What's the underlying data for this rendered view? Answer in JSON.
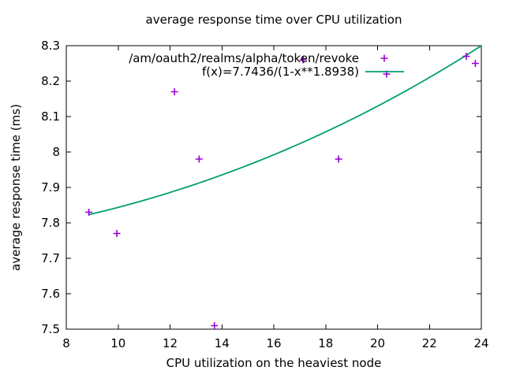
{
  "chart_data": {
    "type": "scatter",
    "title": "average response time over CPU utilization",
    "xlabel": "CPU utilization on the heaviest node",
    "ylabel": "average response time (ms)",
    "xlim": [
      8,
      24
    ],
    "ylim": [
      7.5,
      8.3
    ],
    "xticks": [
      8,
      10,
      12,
      14,
      16,
      18,
      20,
      22,
      24
    ],
    "yticks": [
      7.5,
      7.6,
      7.7,
      7.8,
      7.9,
      8.0,
      8.1,
      8.2,
      8.3
    ],
    "grid": false,
    "legend_position": "top-right-inside",
    "series": [
      {
        "name": "/am/oauth2/realms/alpha/token/revoke",
        "style": "points",
        "marker": "plus",
        "color": "#9400d3",
        "points": [
          [
            8.87,
            7.83
          ],
          [
            9.95,
            7.77
          ],
          [
            12.17,
            8.17
          ],
          [
            13.12,
            7.98
          ],
          [
            13.71,
            7.51
          ],
          [
            17.13,
            8.26
          ],
          [
            18.5,
            7.98
          ],
          [
            20.35,
            8.22
          ],
          [
            23.42,
            8.27
          ],
          [
            23.77,
            8.25
          ]
        ]
      },
      {
        "name": "f(x)=7.7436/(1-x**1.8938)",
        "style": "line",
        "color": "#009e73",
        "fit": {
          "a": 7.7436,
          "b": 1.8938,
          "x_divisor": 100,
          "x_start": 8.87,
          "x_end": 24
        }
      }
    ],
    "colors": {
      "text": "#000000",
      "border": "#000000",
      "background": "#ffffff"
    }
  }
}
